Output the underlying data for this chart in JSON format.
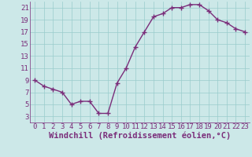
{
  "x": [
    0,
    1,
    2,
    3,
    4,
    5,
    6,
    7,
    8,
    9,
    10,
    11,
    12,
    13,
    14,
    15,
    16,
    17,
    18,
    19,
    20,
    21,
    22,
    23
  ],
  "y": [
    9,
    8,
    7.5,
    7,
    5,
    5.5,
    5.5,
    3.5,
    3.5,
    8.5,
    11,
    14.5,
    17,
    19.5,
    20,
    21,
    21,
    21.5,
    21.5,
    20.5,
    19,
    18.5,
    17.5,
    17
  ],
  "line_color": "#7a2d7a",
  "marker_color": "#7a2d7a",
  "bg_color": "#cce8e8",
  "grid_color": "#99cccc",
  "xlabel": "Windchill (Refroidissement éolien,°C)",
  "xlim": [
    -0.5,
    23.5
  ],
  "ylim": [
    2.0,
    22.0
  ],
  "yticks": [
    3,
    5,
    7,
    9,
    11,
    13,
    15,
    17,
    19,
    21
  ],
  "xticks": [
    0,
    1,
    2,
    3,
    4,
    5,
    6,
    7,
    8,
    9,
    10,
    11,
    12,
    13,
    14,
    15,
    16,
    17,
    18,
    19,
    20,
    21,
    22,
    23
  ],
  "xlabel_fontsize": 7.5,
  "tick_fontsize": 6.5,
  "marker_size": 4,
  "line_width": 1.0
}
